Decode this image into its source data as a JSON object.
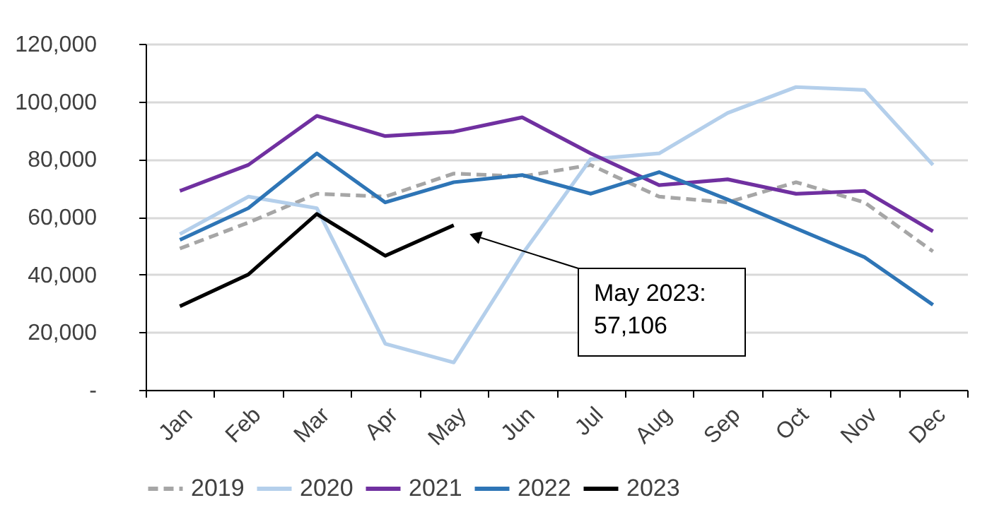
{
  "chart_data": {
    "type": "line",
    "categories": [
      "Jan",
      "Feb",
      "Mar",
      "Apr",
      "May",
      "Jun",
      "Jul",
      "Aug",
      "Sep",
      "Oct",
      "Nov",
      "Dec"
    ],
    "series": [
      {
        "name": "2019",
        "color": "#a6a6a6",
        "line_style": "dashed",
        "values": [
          49000,
          58000,
          68000,
          67000,
          75000,
          74000,
          78000,
          67000,
          65000,
          72000,
          65000,
          48000
        ]
      },
      {
        "name": "2020",
        "color": "#b4cfeb",
        "values": [
          54000,
          67000,
          63000,
          16000,
          9500,
          47000,
          80000,
          82000,
          96000,
          105000,
          104000,
          78000
        ]
      },
      {
        "name": "2021",
        "color": "#7030a0",
        "values": [
          69000,
          78000,
          95000,
          88000,
          89500,
          94500,
          82000,
          71000,
          73000,
          68000,
          69000,
          55000
        ]
      },
      {
        "name": "2022",
        "color": "#2e75b6",
        "values": [
          52000,
          63000,
          82000,
          65000,
          72000,
          74500,
          68000,
          75500,
          66000,
          56000,
          46000,
          29500
        ]
      },
      {
        "name": "2023",
        "color": "#000000",
        "values": [
          29000,
          40000,
          61000,
          46500,
          57106,
          null,
          null,
          null,
          null,
          null,
          null,
          null
        ]
      }
    ],
    "ylim": [
      0,
      120000
    ],
    "yticks": [
      {
        "value": 0,
        "label": "-"
      },
      {
        "value": 20000,
        "label": "20,000"
      },
      {
        "value": 40000,
        "label": "40,000"
      },
      {
        "value": 60000,
        "label": "60,000"
      },
      {
        "value": 80000,
        "label": "80,000"
      },
      {
        "value": 100000,
        "label": "100,000"
      },
      {
        "value": 120000,
        "label": "120,000"
      }
    ],
    "grid": "y",
    "legend": "bottom",
    "line_style": "solid",
    "annotations": [
      "May 2023:\n57,106"
    ]
  }
}
